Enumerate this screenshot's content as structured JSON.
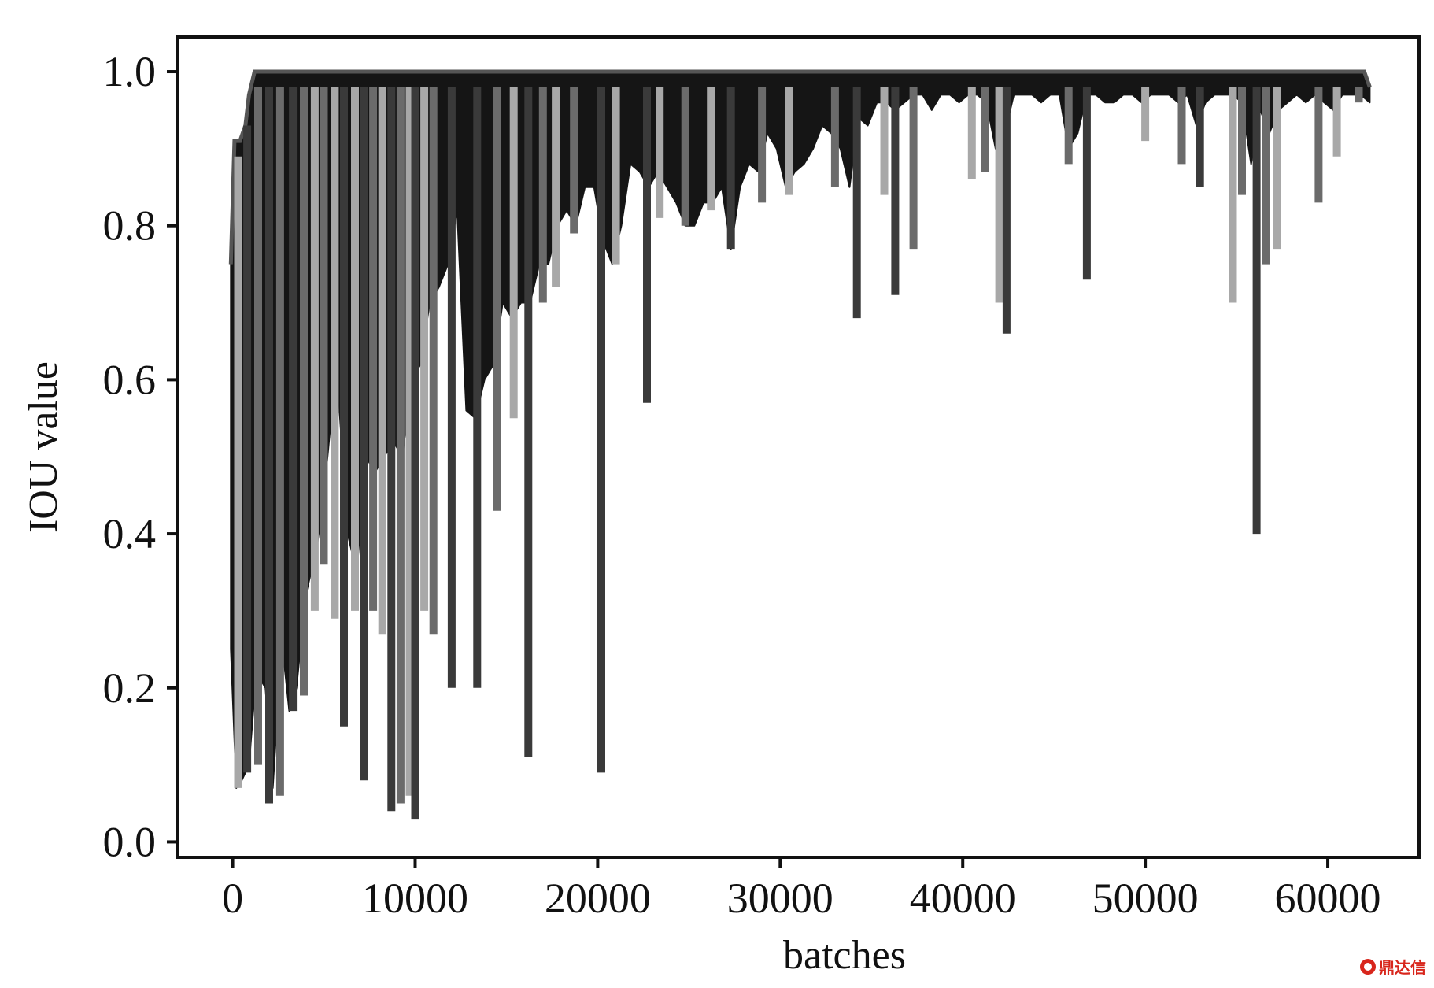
{
  "chart_data": {
    "type": "area",
    "title": "",
    "xlabel": "batches",
    "ylabel": "IOU value",
    "xlim": [
      -3000,
      65000
    ],
    "ylim": [
      -0.02,
      1.045
    ],
    "x_ticks": [
      0,
      10000,
      20000,
      30000,
      40000,
      50000,
      60000
    ],
    "x_tick_labels": [
      "0",
      "10000",
      "20000",
      "30000",
      "40000",
      "50000",
      "60000"
    ],
    "y_ticks": [
      0.0,
      0.2,
      0.4,
      0.6,
      0.8,
      1.0
    ],
    "y_tick_labels": [
      "0.0",
      "0.2",
      "0.4",
      "0.6",
      "0.8",
      "1.0"
    ],
    "grid": false,
    "colors": {
      "fill": "#151515",
      "spike_dark": "#3a3a3a",
      "spike_mid": "#6b6b6b",
      "spike_light": "#a8a8a8",
      "axis": "#111111"
    },
    "series": [
      {
        "upper": {
          "x": [
            -100,
            100,
            400,
            700,
            900,
            1200,
            62000,
            62300
          ],
          "y": [
            0.75,
            0.91,
            0.91,
            0.93,
            0.97,
            1.0,
            1.0,
            0.98
          ]
        },
        "envelope_lower": {
          "x": [
            -100,
            200,
            500,
            900,
            1300,
            1800,
            2200,
            2700,
            3100,
            3500,
            4000,
            4300,
            4600,
            5000,
            5400,
            5800,
            6300,
            6800,
            7300,
            7800,
            8300,
            8800,
            9300,
            9800,
            10300,
            10800,
            11300,
            11800,
            12300,
            12800,
            13300,
            13800,
            14300,
            14800,
            15300,
            15800,
            16300,
            16800,
            17300,
            17800,
            18300,
            18800,
            19300,
            19800,
            20300,
            20800,
            21300,
            21800,
            22300,
            22800,
            23300,
            23800,
            24300,
            24800,
            25300,
            25800,
            26300,
            26800,
            27300,
            27800,
            28300,
            28800,
            29300,
            29800,
            30300,
            30800,
            31300,
            31800,
            32300,
            32800,
            33300,
            33800,
            34300,
            34800,
            35300,
            35800,
            36300,
            36800,
            37300,
            37800,
            38300,
            38800,
            39300,
            39800,
            40300,
            40800,
            41300,
            41800,
            42300,
            42800,
            43300,
            43800,
            44300,
            44800,
            45300,
            45800,
            46300,
            46800,
            47300,
            47800,
            48300,
            48800,
            49300,
            49800,
            50300,
            50800,
            51300,
            51800,
            52300,
            52800,
            53300,
            53800,
            54300,
            54800,
            55300,
            55800,
            56300,
            56800,
            57300,
            57800,
            58300,
            58800,
            59300,
            59800,
            60300,
            60800,
            61300,
            61800,
            62300
          ],
          "y": [
            0.25,
            0.07,
            0.08,
            0.1,
            0.22,
            0.2,
            0.07,
            0.26,
            0.17,
            0.2,
            0.32,
            0.35,
            0.38,
            0.45,
            0.55,
            0.58,
            0.4,
            0.35,
            0.5,
            0.48,
            0.5,
            0.52,
            0.5,
            0.6,
            0.62,
            0.7,
            0.72,
            0.75,
            0.82,
            0.56,
            0.55,
            0.6,
            0.62,
            0.7,
            0.68,
            0.7,
            0.7,
            0.75,
            0.75,
            0.8,
            0.82,
            0.8,
            0.85,
            0.85,
            0.78,
            0.75,
            0.8,
            0.88,
            0.87,
            0.85,
            0.87,
            0.85,
            0.83,
            0.8,
            0.8,
            0.83,
            0.83,
            0.85,
            0.77,
            0.85,
            0.88,
            0.87,
            0.92,
            0.9,
            0.85,
            0.87,
            0.88,
            0.9,
            0.93,
            0.92,
            0.9,
            0.85,
            0.94,
            0.93,
            0.96,
            0.96,
            0.95,
            0.96,
            0.97,
            0.97,
            0.95,
            0.97,
            0.97,
            0.96,
            0.97,
            0.97,
            0.96,
            0.9,
            0.92,
            0.97,
            0.97,
            0.97,
            0.96,
            0.97,
            0.97,
            0.9,
            0.92,
            0.97,
            0.97,
            0.96,
            0.96,
            0.97,
            0.97,
            0.96,
            0.97,
            0.97,
            0.97,
            0.96,
            0.97,
            0.93,
            0.96,
            0.97,
            0.97,
            0.97,
            0.96,
            0.88,
            0.95,
            0.92,
            0.95,
            0.96,
            0.97,
            0.96,
            0.97,
            0.96,
            0.95,
            0.97,
            0.97,
            0.97,
            0.96
          ]
        },
        "spikes": [
          {
            "x": 300,
            "y": 0.07,
            "shade": "light"
          },
          {
            "x": 800,
            "y": 0.09,
            "shade": "dark"
          },
          {
            "x": 1400,
            "y": 0.1,
            "shade": "mid"
          },
          {
            "x": 2000,
            "y": 0.05,
            "shade": "dark"
          },
          {
            "x": 2600,
            "y": 0.06,
            "shade": "mid"
          },
          {
            "x": 3300,
            "y": 0.17,
            "shade": "dark"
          },
          {
            "x": 3900,
            "y": 0.19,
            "shade": "mid"
          },
          {
            "x": 4500,
            "y": 0.3,
            "shade": "light"
          },
          {
            "x": 5000,
            "y": 0.36,
            "shade": "mid"
          },
          {
            "x": 5600,
            "y": 0.29,
            "shade": "light"
          },
          {
            "x": 6100,
            "y": 0.15,
            "shade": "dark"
          },
          {
            "x": 6700,
            "y": 0.3,
            "shade": "light"
          },
          {
            "x": 7200,
            "y": 0.08,
            "shade": "dark"
          },
          {
            "x": 7700,
            "y": 0.3,
            "shade": "mid"
          },
          {
            "x": 8200,
            "y": 0.27,
            "shade": "light"
          },
          {
            "x": 8700,
            "y": 0.04,
            "shade": "dark"
          },
          {
            "x": 9200,
            "y": 0.05,
            "shade": "mid"
          },
          {
            "x": 9700,
            "y": 0.06,
            "shade": "light"
          },
          {
            "x": 10000,
            "y": 0.03,
            "shade": "dark"
          },
          {
            "x": 10500,
            "y": 0.3,
            "shade": "light"
          },
          {
            "x": 11000,
            "y": 0.27,
            "shade": "mid"
          },
          {
            "x": 12000,
            "y": 0.2,
            "shade": "dark"
          },
          {
            "x": 13400,
            "y": 0.2,
            "shade": "dark"
          },
          {
            "x": 14500,
            "y": 0.43,
            "shade": "mid"
          },
          {
            "x": 15400,
            "y": 0.55,
            "shade": "light"
          },
          {
            "x": 16200,
            "y": 0.11,
            "shade": "dark"
          },
          {
            "x": 17000,
            "y": 0.7,
            "shade": "mid"
          },
          {
            "x": 17700,
            "y": 0.72,
            "shade": "light"
          },
          {
            "x": 18700,
            "y": 0.79,
            "shade": "mid"
          },
          {
            "x": 20200,
            "y": 0.09,
            "shade": "dark"
          },
          {
            "x": 21000,
            "y": 0.75,
            "shade": "light"
          },
          {
            "x": 22700,
            "y": 0.57,
            "shade": "dark"
          },
          {
            "x": 23400,
            "y": 0.81,
            "shade": "light"
          },
          {
            "x": 24800,
            "y": 0.8,
            "shade": "mid"
          },
          {
            "x": 26200,
            "y": 0.82,
            "shade": "light"
          },
          {
            "x": 27300,
            "y": 0.77,
            "shade": "dark"
          },
          {
            "x": 29000,
            "y": 0.83,
            "shade": "mid"
          },
          {
            "x": 30500,
            "y": 0.84,
            "shade": "light"
          },
          {
            "x": 33000,
            "y": 0.85,
            "shade": "mid"
          },
          {
            "x": 34200,
            "y": 0.68,
            "shade": "dark"
          },
          {
            "x": 35700,
            "y": 0.84,
            "shade": "light"
          },
          {
            "x": 36300,
            "y": 0.71,
            "shade": "dark"
          },
          {
            "x": 37300,
            "y": 0.77,
            "shade": "mid"
          },
          {
            "x": 40500,
            "y": 0.86,
            "shade": "light"
          },
          {
            "x": 41200,
            "y": 0.87,
            "shade": "mid"
          },
          {
            "x": 42000,
            "y": 0.7,
            "shade": "light"
          },
          {
            "x": 42400,
            "y": 0.66,
            "shade": "dark"
          },
          {
            "x": 45800,
            "y": 0.88,
            "shade": "mid"
          },
          {
            "x": 46800,
            "y": 0.73,
            "shade": "dark"
          },
          {
            "x": 50000,
            "y": 0.91,
            "shade": "light"
          },
          {
            "x": 52000,
            "y": 0.88,
            "shade": "mid"
          },
          {
            "x": 53000,
            "y": 0.85,
            "shade": "dark"
          },
          {
            "x": 54800,
            "y": 0.7,
            "shade": "light"
          },
          {
            "x": 55300,
            "y": 0.84,
            "shade": "mid"
          },
          {
            "x": 56100,
            "y": 0.4,
            "shade": "dark"
          },
          {
            "x": 56600,
            "y": 0.75,
            "shade": "mid"
          },
          {
            "x": 57200,
            "y": 0.77,
            "shade": "light"
          },
          {
            "x": 59500,
            "y": 0.83,
            "shade": "mid"
          },
          {
            "x": 60500,
            "y": 0.89,
            "shade": "light"
          },
          {
            "x": 61700,
            "y": 0.96,
            "shade": "mid"
          }
        ]
      }
    ]
  },
  "watermark": {
    "text": "鼎达信",
    "icon": "logo-icon"
  }
}
